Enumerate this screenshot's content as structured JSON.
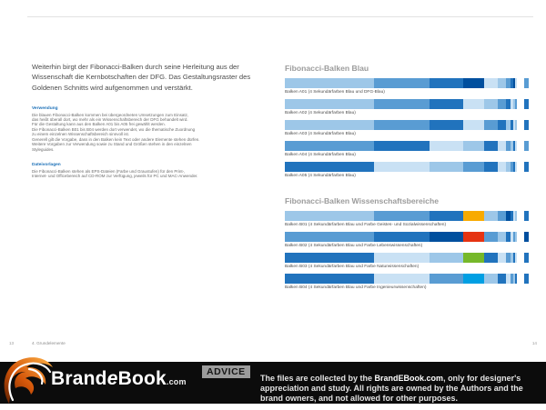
{
  "left_page": {
    "intro": "Weiterhin birgt der Fibonacci-Balken durch seine Herleitung aus der Wissenschaft die Kernbotschaften der DFG. Das Gestaltungsraster des Goldenen Schnitts wird aufgenommen und verstärkt.",
    "usage": {
      "heading": "Verwendung",
      "body": "Die blauen Fibonacci-Balken kommen bei übergeordneten Umsetzungen zum Einsatz,\ndas heißt überall dort, wo mehr als ein Wissenschaftsbereich der DFG behandelt wird.\nFür die Gestaltung kann aus den Balken A01 bis A05 frei gewählt werden.\nDie Fibonacci-Balken B01 bis B04 werden dort verwendet, wo die thematische Zuordnung\nzu einem einzelnen Wissenschaftsbereich sinnvoll ist.\nGenerell gilt die Vorgabe, dass in den Balken kein Text oder andere Elemente stehen dürfen.\nWeitere Vorgaben zur Verwendung sowie zu Stand und Größen stehen in den einzelnen\nStyleguides."
    },
    "files": {
      "heading": "Dateivorlagen",
      "body": "Die Fibonacci-Balken stehen als EPS-Dateien (Farbe und Graustufen) für den Print-,\nInternet- und Officebereich auf CD-ROM zur Verfügung, jeweils für PC und MAC-Anwender."
    },
    "footer_page_number": "13",
    "footer_section": "4. Grundelemente"
  },
  "palette": {
    "s1": "#c9e1f4",
    "s2": "#9dc7e8",
    "s3": "#599cd3",
    "s4": "#2173bd",
    "dfg": "#004f9e",
    "org": "#f8aa00",
    "red": "#e53312",
    "grn": "#76b82a",
    "cyn": "#009fe3"
  },
  "segment_widths": [
    36,
    22.3,
    13.8,
    8.5,
    5.3,
    3.3,
    2,
    1.2,
    0.8,
    0.5
  ],
  "end_gap": 3.2,
  "end_sliver": 1.7,
  "right_page": {
    "sections": [
      {
        "heading": "Fibonacci-Balken Blau",
        "bars": [
          {
            "label": "Balken A01 (4 Sekundärfarben Blau und DFG-Blau)",
            "colors": [
              "s2",
              "s3",
              "s4",
              "dfg",
              "s1",
              "s2",
              "s3",
              "s4",
              "dfg",
              "s1"
            ],
            "sliver": "s3"
          },
          {
            "label": "Balken A02 (4 Sekundärfarben Blau)",
            "colors": [
              "s2",
              "s3",
              "s4",
              "s1",
              "s2",
              "s3",
              "s4",
              "s1",
              "s2",
              "s3"
            ],
            "sliver": "s4"
          },
          {
            "label": "Balken A03 (4 Sekundärfarben Blau)",
            "colors": [
              "s2",
              "s3",
              "s4",
              "s1",
              "s3",
              "s4",
              "s2",
              "s4",
              "s1",
              "s2"
            ],
            "sliver": "s4"
          },
          {
            "label": "Balken A04 (4 Sekundärfarben Blau)",
            "colors": [
              "s3",
              "s4",
              "s1",
              "s2",
              "s4",
              "s1",
              "s3",
              "s2",
              "s4",
              "s1"
            ],
            "sliver": "s3"
          },
          {
            "label": "Balken A05 (4 Sekundärfarben Blau)",
            "colors": [
              "s4",
              "s1",
              "s2",
              "s3",
              "s4",
              "s1",
              "s2",
              "s3",
              "s4",
              "s1"
            ],
            "sliver": "s4"
          }
        ]
      },
      {
        "heading": "Fibonacci-Balken Wissenschaftsbereiche",
        "bars": [
          {
            "label": "Balken B01 (4 Sekundärfarben Blau und Farbe Geistes- und Sozialwissenschaften)",
            "colors": [
              "s2",
              "s3",
              "s4",
              "org",
              "s2",
              "s3",
              "dfg",
              "s4",
              "s1",
              "s2"
            ],
            "sliver": "s4"
          },
          {
            "label": "Balken B02 (4 Sekundärfarben Blau und Farbe Lebenswissenschaften)",
            "colors": [
              "s3",
              "s4",
              "dfg",
              "red",
              "s3",
              "s2",
              "s4",
              "s1",
              "s3",
              "s2"
            ],
            "sliver": "dfg"
          },
          {
            "label": "Balken B03 (4 Sekundärfarben Blau und Farbe Naturwissenschaften)",
            "colors": [
              "s4",
              "s1",
              "s2",
              "grn",
              "s4",
              "s1",
              "s3",
              "s2",
              "s4",
              "s1"
            ],
            "sliver": "s4"
          },
          {
            "label": "Balken B04 (4 Sekundärfarben Blau und Farbe Ingenieurwissenschaften)",
            "colors": [
              "s4",
              "s1",
              "s3",
              "cyn",
              "s2",
              "s4",
              "s1",
              "s3",
              "s2",
              "s4"
            ],
            "sliver": "s4"
          }
        ]
      }
    ],
    "footer_page_number": "14"
  },
  "watermark": {
    "logo_part1": "Brand",
    "logo_e": "e",
    "logo_part2": "Book",
    "logo_suffix": ".com",
    "advice_label": "ADVICE",
    "disclaimer_pre": "The files are collected by the ",
    "disclaimer_brand": "BrandEBook.com",
    "disclaimer_post": ", only for designer's appreciation and study.  All rights are owned by the Authors and the brand owners, and not allowed for other purposes."
  }
}
